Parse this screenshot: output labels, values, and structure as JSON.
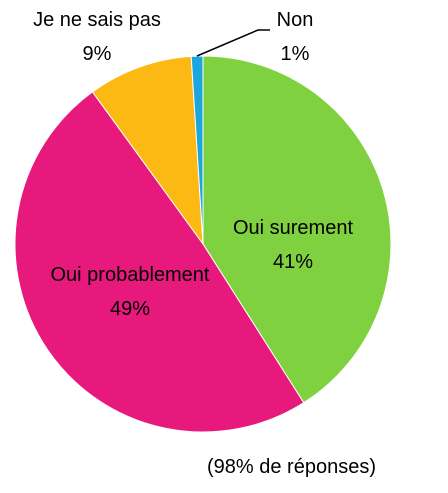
{
  "chart_data": {
    "type": "pie",
    "categories": [
      "Oui surement",
      "Oui probablement",
      "Je ne sais pas",
      "Non"
    ],
    "values": [
      41,
      49,
      9,
      1
    ],
    "value_labels": [
      "41%",
      "49%",
      "9%",
      "1%"
    ],
    "colors": [
      "#7fd140",
      "#e8197d",
      "#fdb913",
      "#1ba6dc"
    ],
    "note": "(98% de réponses)"
  }
}
